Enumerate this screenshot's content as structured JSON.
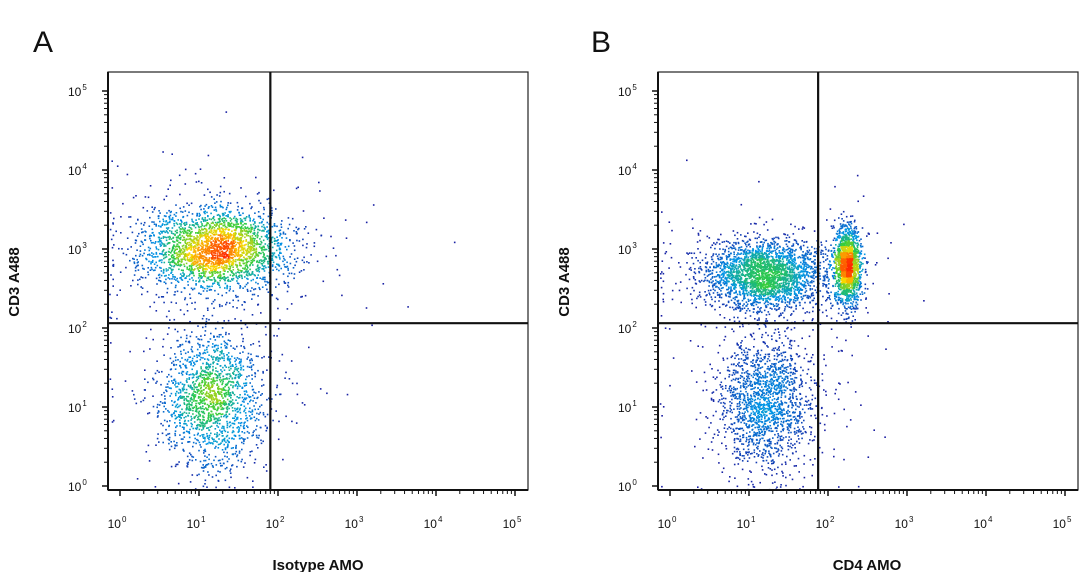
{
  "chart_data": [
    {
      "type": "scatter",
      "panel_label": "A",
      "xlabel": "Isotype AMO",
      "ylabel": "CD3 A488",
      "x_scale": "log",
      "y_scale": "log",
      "xlim": [
        1,
        100000
      ],
      "ylim": [
        1,
        100000
      ],
      "x_ticks": [
        {
          "base": "10",
          "exp": "0",
          "value": 1
        },
        {
          "base": "10",
          "exp": "1",
          "value": 10
        },
        {
          "base": "10",
          "exp": "2",
          "value": 100
        },
        {
          "base": "10",
          "exp": "3",
          "value": 1000
        },
        {
          "base": "10",
          "exp": "4",
          "value": 10000
        },
        {
          "base": "10",
          "exp": "5",
          "value": 100000
        }
      ],
      "y_ticks": [
        {
          "base": "10",
          "exp": "0",
          "value": 1
        },
        {
          "base": "10",
          "exp": "1",
          "value": 10
        },
        {
          "base": "10",
          "exp": "2",
          "value": 100
        },
        {
          "base": "10",
          "exp": "3",
          "value": 1000
        },
        {
          "base": "10",
          "exp": "4",
          "value": 10000
        },
        {
          "base": "10",
          "exp": "5",
          "value": 100000
        }
      ],
      "quadrant_gates": {
        "x": 80,
        "y": 115
      },
      "populations": [
        {
          "center": [
            16,
            1000
          ],
          "log_spread": [
            0.45,
            0.26
          ],
          "density": "high"
        },
        {
          "center": [
            14,
            13
          ],
          "log_spread": [
            0.33,
            0.42
          ],
          "density": "medium"
        }
      ],
      "colors": {
        "low": "#1a1aa0",
        "mid": "#2ecc40",
        "high": "#ff2a00"
      },
      "grid": false
    },
    {
      "type": "scatter",
      "panel_label": "B",
      "xlabel": "CD4 AMO",
      "ylabel": "CD3 A488",
      "x_scale": "log",
      "y_scale": "log",
      "xlim": [
        1,
        100000
      ],
      "ylim": [
        1,
        100000
      ],
      "x_ticks": [
        {
          "base": "10",
          "exp": "0",
          "value": 1
        },
        {
          "base": "10",
          "exp": "1",
          "value": 10
        },
        {
          "base": "10",
          "exp": "2",
          "value": 100
        },
        {
          "base": "10",
          "exp": "3",
          "value": 1000
        },
        {
          "base": "10",
          "exp": "4",
          "value": 10000
        },
        {
          "base": "10",
          "exp": "5",
          "value": 100000
        }
      ],
      "y_ticks": [
        {
          "base": "10",
          "exp": "0",
          "value": 1
        },
        {
          "base": "10",
          "exp": "1",
          "value": 10
        },
        {
          "base": "10",
          "exp": "2",
          "value": 100
        },
        {
          "base": "10",
          "exp": "3",
          "value": 1000
        },
        {
          "base": "10",
          "exp": "4",
          "value": 10000
        },
        {
          "base": "10",
          "exp": "5",
          "value": 100000
        }
      ],
      "quadrant_gates": {
        "x": 75,
        "y": 115
      },
      "populations": [
        {
          "center": [
            15,
            480
          ],
          "log_spread": [
            0.38,
            0.22
          ],
          "density": "high"
        },
        {
          "center": [
            175,
            620
          ],
          "log_spread": [
            0.08,
            0.24
          ],
          "density": "very-high"
        },
        {
          "center": [
            16,
            12
          ],
          "log_spread": [
            0.3,
            0.42
          ],
          "density": "medium"
        }
      ],
      "colors": {
        "low": "#1a1aa0",
        "mid": "#2ecc40",
        "high": "#ff2a00"
      },
      "grid": false
    }
  ]
}
